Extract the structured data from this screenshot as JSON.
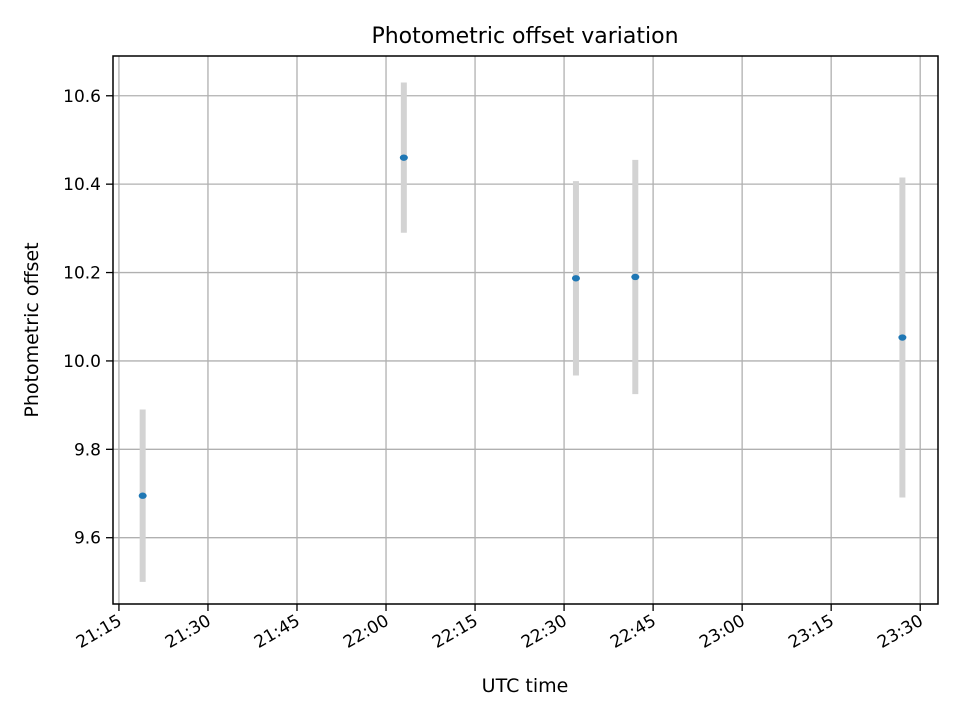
{
  "colors": {
    "marker": "#1f77b4",
    "errorbar": "#d3d3d3",
    "grid": "#b0b0b0",
    "axes": "#000000",
    "background": "#ffffff"
  },
  "chart_data": {
    "type": "scatter",
    "title": "Photometric offset variation",
    "xlabel": "UTC time",
    "ylabel": "Photometric offset",
    "x_axis_type": "time",
    "xlim": [
      "21:14",
      "23:33"
    ],
    "ylim": [
      9.45,
      10.69
    ],
    "grid": true,
    "legend": "none",
    "xticks": [
      "21:15",
      "21:30",
      "21:45",
      "22:00",
      "22:15",
      "22:30",
      "22:45",
      "23:00",
      "23:15",
      "23:30"
    ],
    "yticks": [
      "9.6",
      "9.8",
      "10.0",
      "10.2",
      "10.4",
      "10.6"
    ],
    "series": [
      {
        "points": [
          {
            "x": "21:19",
            "y": 9.695,
            "yerr": 0.195
          },
          {
            "x": "22:03",
            "y": 10.46,
            "yerr": 0.17
          },
          {
            "x": "22:32",
            "y": 10.187,
            "yerr": 0.22
          },
          {
            "x": "22:42",
            "y": 10.19,
            "yerr": 0.265
          },
          {
            "x": "23:27",
            "y": 10.053,
            "yerr": 0.362
          }
        ]
      }
    ]
  }
}
